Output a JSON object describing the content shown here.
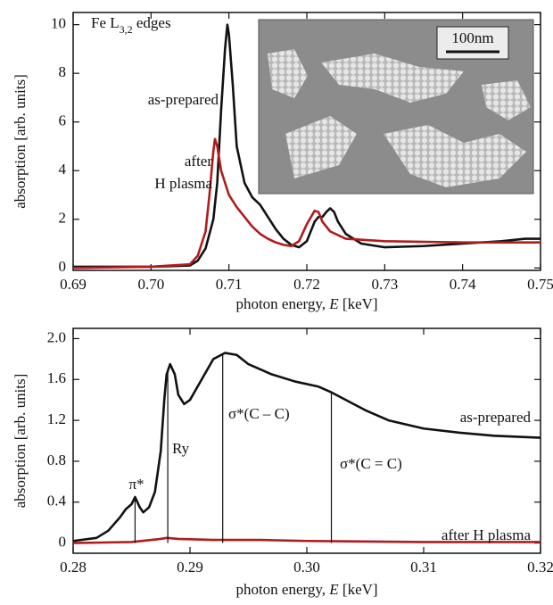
{
  "chart_data": [
    {
      "type": "line",
      "annotations": [
        {
          "text": "Fe L",
          "sub": "3,2",
          "tail": " edges",
          "color": "#111111"
        },
        {
          "text": "as-prepared",
          "color": "#111111"
        },
        {
          "text": "after",
          "color": "#b01c1c"
        },
        {
          "text": "H plasma",
          "color": "#b01c1c"
        }
      ],
      "inset_label": "100nm",
      "ylabel": "absorption [arb. units]",
      "xlabel": [
        "photon energy, ",
        "E",
        " [keV]"
      ],
      "xlim": [
        0.69,
        0.75
      ],
      "xticks": [
        0.69,
        {
          "value": 0.7,
          "label": "0.70"
        },
        0.71,
        0.72,
        0.73,
        0.74,
        0.75
      ],
      "ylim": [
        -0.1,
        10.5
      ],
      "yticks": [
        0,
        2,
        4,
        6,
        8,
        10
      ],
      "series": [
        {
          "name": "as-prepared",
          "color": "#111111",
          "x": [
            0.69,
            0.7,
            0.705,
            0.706,
            0.707,
            0.708,
            0.7085,
            0.709,
            0.7095,
            0.7098,
            0.71,
            0.7105,
            0.711,
            0.712,
            0.713,
            0.714,
            0.715,
            0.716,
            0.717,
            0.718,
            0.719,
            0.72,
            0.721,
            0.7215,
            0.722,
            0.7225,
            0.723,
            0.7235,
            0.724,
            0.725,
            0.727,
            0.73,
            0.735,
            0.74,
            0.745,
            0.748,
            0.75
          ],
          "values": [
            0.05,
            0.05,
            0.1,
            0.3,
            0.8,
            2.0,
            3.5,
            6.5,
            9.0,
            10.0,
            9.6,
            7.5,
            5.0,
            3.5,
            2.9,
            2.6,
            2.1,
            1.6,
            1.2,
            0.95,
            0.85,
            1.1,
            1.9,
            2.1,
            2.1,
            2.3,
            2.45,
            2.3,
            1.9,
            1.4,
            1.0,
            0.85,
            0.9,
            1.0,
            1.1,
            1.2,
            1.2
          ]
        },
        {
          "name": "after H plasma",
          "color": "#b01c1c",
          "x": [
            0.69,
            0.7,
            0.705,
            0.706,
            0.707,
            0.7075,
            0.708,
            0.7082,
            0.7085,
            0.709,
            0.71,
            0.711,
            0.712,
            0.713,
            0.714,
            0.715,
            0.716,
            0.717,
            0.718,
            0.719,
            0.72,
            0.721,
            0.7215,
            0.722,
            0.723,
            0.724,
            0.725,
            0.73,
            0.74,
            0.75
          ],
          "values": [
            0.0,
            0.05,
            0.15,
            0.5,
            1.5,
            3.0,
            4.8,
            5.3,
            5.0,
            4.0,
            3.0,
            2.5,
            2.1,
            1.7,
            1.4,
            1.2,
            1.05,
            0.95,
            0.9,
            1.1,
            1.8,
            2.35,
            2.3,
            1.9,
            1.5,
            1.35,
            1.2,
            1.1,
            1.05,
            1.05
          ]
        }
      ]
    },
    {
      "type": "line",
      "annotations": [
        {
          "text": "π*",
          "color": "#111111"
        },
        {
          "text": "Ry",
          "color": "#111111"
        },
        {
          "text": "σ*(C – C)",
          "color": "#111111"
        },
        {
          "text": "σ*(C = C)",
          "color": "#111111"
        },
        {
          "text": "as-prepared",
          "color": "#111111"
        },
        {
          "text": "after H plasma",
          "color": "#b01c1c"
        }
      ],
      "markers": [
        0.2853,
        0.2881,
        0.2928,
        0.3021
      ],
      "ylabel": "absorption [arb. units]",
      "xlabel": [
        "photon energy, ",
        "E",
        " [keV]"
      ],
      "xlim": [
        0.28,
        0.32
      ],
      "xticks": [
        0.28,
        0.29,
        {
          "value": 0.3,
          "label": "0.30"
        },
        0.31,
        0.32
      ],
      "ylim": [
        -0.1,
        2.1
      ],
      "yticks": [
        0,
        0.4,
        0.8,
        1.2,
        1.6,
        {
          "value": 2,
          "label": "2.0"
        }
      ],
      "series": [
        {
          "name": "as-prepared",
          "color": "#111111",
          "x": [
            0.28,
            0.282,
            0.283,
            0.284,
            0.2845,
            0.285,
            0.2853,
            0.2857,
            0.286,
            0.2865,
            0.287,
            0.2875,
            0.2878,
            0.288,
            0.2883,
            0.2887,
            0.289,
            0.2895,
            0.29,
            0.291,
            0.292,
            0.293,
            0.294,
            0.295,
            0.297,
            0.299,
            0.301,
            0.302,
            0.303,
            0.305,
            0.307,
            0.31,
            0.313,
            0.316,
            0.32
          ],
          "values": [
            0.02,
            0.05,
            0.12,
            0.25,
            0.33,
            0.38,
            0.45,
            0.35,
            0.3,
            0.35,
            0.5,
            0.9,
            1.4,
            1.65,
            1.75,
            1.65,
            1.45,
            1.36,
            1.4,
            1.6,
            1.8,
            1.86,
            1.84,
            1.75,
            1.65,
            1.58,
            1.53,
            1.48,
            1.42,
            1.3,
            1.2,
            1.12,
            1.08,
            1.05,
            1.03
          ]
        },
        {
          "name": "after H plasma",
          "color": "#b01c1c",
          "x": [
            0.28,
            0.285,
            0.2875,
            0.288,
            0.289,
            0.292,
            0.296,
            0.3,
            0.31,
            0.32
          ],
          "values": [
            0.0,
            0.01,
            0.04,
            0.05,
            0.04,
            0.03,
            0.03,
            0.02,
            0.01,
            0.01
          ]
        }
      ]
    }
  ]
}
